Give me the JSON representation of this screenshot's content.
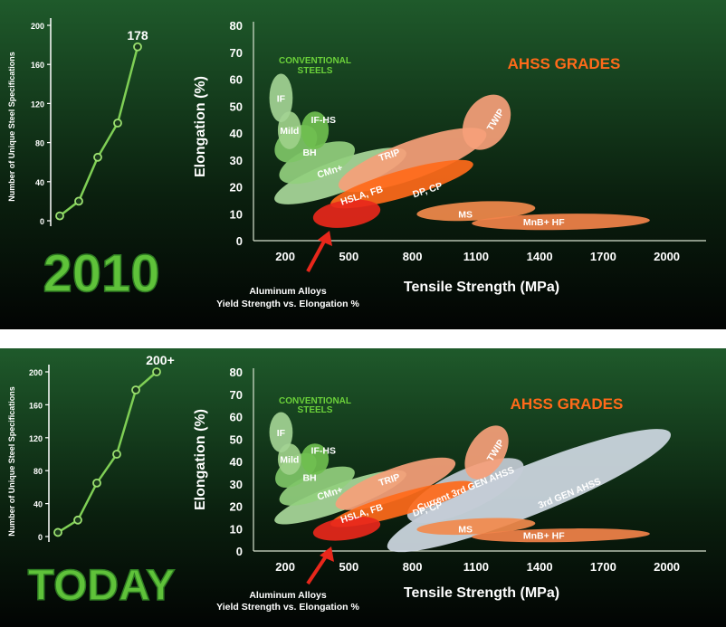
{
  "colors": {
    "bg_top": "#1f5a2b",
    "bg_bottom": "#020403",
    "green_line": "#7fcf55",
    "green_label": "#6bd13a",
    "orange": "#ff6a1a",
    "red": "#e8271b",
    "salmon": "#f6a07a",
    "light_gray": "#cfd9e3"
  },
  "panels": [
    {
      "big_label": "2010",
      "left_chart": {
        "type": "line",
        "ylabel": "Number of Unique Steel Specifications",
        "y_ticks": [
          "0",
          "40",
          "80",
          "120",
          "160",
          "200"
        ],
        "ylim": [
          0,
          200
        ],
        "values": [
          5,
          20,
          65,
          100,
          178
        ],
        "end_label": "178"
      },
      "right_chart": {
        "type": "area",
        "xlabel": "Tensile Strength (MPa)",
        "ylabel": "Elongation (%)",
        "x_ticks": [
          "200",
          "500",
          "800",
          "1100",
          "1400",
          "1700",
          "2000"
        ],
        "y_ticks": [
          "0",
          "10",
          "20",
          "30",
          "40",
          "50",
          "60",
          "70",
          "80"
        ],
        "xlim": [
          50,
          2100
        ],
        "ylim": [
          0,
          80
        ],
        "conventional_label": [
          "CONVENTIONAL",
          "STEELS"
        ],
        "ahss_label": "AHSS GRADES",
        "aluminum_note": [
          "Aluminum Alloys",
          "Yield Strength vs. Elongation %"
        ],
        "regions": [
          {
            "name": "HSLA, FB",
            "cx": 460,
            "cy": 24,
            "rx": 330,
            "ry": 6,
            "angle": -20,
            "fill": "#a9d89a",
            "label_at": [
              560,
              17
            ]
          },
          {
            "name": "CMn+",
            "cx": 350,
            "cy": 29,
            "rx": 190,
            "ry": 6,
            "angle": -22,
            "fill": "#93cf7e",
            "label_at": [
              410,
              26
            ]
          },
          {
            "name": "BH",
            "cx": 250,
            "cy": 36,
            "rx": 110,
            "ry": 6,
            "angle": -35,
            "fill": "#7ec567",
            "label_at": [
              315,
              33
            ]
          },
          {
            "name": "Mild",
            "cx": 220,
            "cy": 41,
            "rx": 55,
            "ry": 7,
            "angle": 0,
            "fill": "#9ed08a",
            "label_at": [
              220,
              41
            ]
          },
          {
            "name": "IF-HS",
            "cx": 340,
            "cy": 41,
            "rx": 65,
            "ry": 7,
            "angle": 0,
            "fill": "#6fbe4f",
            "label_at": [
              380,
              45
            ]
          },
          {
            "name": "IF",
            "cx": 180,
            "cy": 53,
            "rx": 55,
            "ry": 9,
            "angle": 0,
            "fill": "#a3d394",
            "label_at": [
              180,
              53
            ]
          },
          {
            "name": "TRIP",
            "cx": 800,
            "cy": 30,
            "rx": 370,
            "ry": 7,
            "angle": -20,
            "fill": "#f6a07a",
            "label_at": [
              690,
              32
            ]
          },
          {
            "name": "DP, CP",
            "cx": 750,
            "cy": 21,
            "rx": 350,
            "ry": 5,
            "angle": -16,
            "fill": "#ff6a1a",
            "label_at": [
              870,
              19
            ]
          },
          {
            "name": "MS",
            "cx": 1100,
            "cy": 11,
            "rx": 280,
            "ry": 3.5,
            "angle": -3,
            "fill": "#f28a4c",
            "label_at": [
              1050,
              10
            ]
          },
          {
            "name": "MnB+ HF",
            "cx": 1500,
            "cy": 7,
            "rx": 420,
            "ry": 3,
            "angle": -1,
            "fill": "#f2824a",
            "label_at": [
              1420,
              7
            ]
          },
          {
            "name": "TWIP",
            "cx": 1150,
            "cy": 44,
            "rx": 140,
            "ry": 8,
            "angle": -58,
            "fill": "#f6a07a",
            "label_at": [
              1190,
              45
            ]
          },
          {
            "name": "",
            "cx": 490,
            "cy": 10,
            "rx": 160,
            "ry": 5,
            "angle": -8,
            "fill": "#e8271b",
            "label_at": [
              0,
              0
            ]
          }
        ]
      }
    },
    {
      "big_label": "TODAY",
      "left_chart": {
        "type": "line",
        "ylabel": "Number of Unique Steel Specifications",
        "y_ticks": [
          "0",
          "40",
          "80",
          "120",
          "160",
          "200"
        ],
        "ylim": [
          0,
          200
        ],
        "values": [
          5,
          20,
          65,
          100,
          178,
          200
        ],
        "end_label": "200+"
      },
      "right_chart": {
        "type": "area",
        "xlabel": "Tensile Strength (MPa)",
        "ylabel": "Elongation (%)",
        "x_ticks": [
          "200",
          "500",
          "800",
          "1100",
          "1400",
          "1700",
          "2000"
        ],
        "y_ticks": [
          "0",
          "10",
          "20",
          "30",
          "40",
          "50",
          "60",
          "70",
          "80"
        ],
        "xlim": [
          50,
          2100
        ],
        "ylim": [
          0,
          80
        ],
        "conventional_label": [
          "CONVENTIONAL",
          "STEELS"
        ],
        "ahss_label": "AHSS GRADES",
        "aluminum_note": [
          "Aluminum Alloys",
          "Yield Strength vs. Elongation %"
        ],
        "regions": [
          {
            "name": "3rd GEN AHSS",
            "cx": 1350,
            "cy": 27,
            "rx": 720,
            "ry": 11,
            "angle": -22,
            "fill": "#cfd9e3",
            "label_at": [
              1540,
              26
            ]
          },
          {
            "name": "Current 3rd GEN AHSS",
            "cx": 1050,
            "cy": 27,
            "rx": 300,
            "ry": 9,
            "angle": -25,
            "fill": "#c4ccd6",
            "label_at": [
              1050,
              28
            ]
          },
          {
            "name": "HSLA, FB",
            "cx": 460,
            "cy": 24,
            "rx": 330,
            "ry": 6,
            "angle": -20,
            "fill": "#a9d89a",
            "label_at": [
              560,
              17
            ]
          },
          {
            "name": "CMn+",
            "cx": 350,
            "cy": 29,
            "rx": 190,
            "ry": 6,
            "angle": -22,
            "fill": "#93cf7e",
            "label_at": [
              410,
              26
            ]
          },
          {
            "name": "BH",
            "cx": 250,
            "cy": 36,
            "rx": 110,
            "ry": 6,
            "angle": -35,
            "fill": "#7ec567",
            "label_at": [
              315,
              33
            ]
          },
          {
            "name": "Mild",
            "cx": 220,
            "cy": 41,
            "rx": 55,
            "ry": 7,
            "angle": 0,
            "fill": "#9ed08a",
            "label_at": [
              220,
              41
            ]
          },
          {
            "name": "IF-HS",
            "cx": 340,
            "cy": 41,
            "rx": 65,
            "ry": 7,
            "angle": 0,
            "fill": "#6fbe4f",
            "label_at": [
              380,
              45
            ]
          },
          {
            "name": "IF",
            "cx": 180,
            "cy": 53,
            "rx": 55,
            "ry": 9,
            "angle": 0,
            "fill": "#a3d394",
            "label_at": [
              180,
              53
            ]
          },
          {
            "name": "TRIP",
            "cx": 720,
            "cy": 30,
            "rx": 300,
            "ry": 7,
            "angle": -20,
            "fill": "#f6a07a",
            "label_at": [
              690,
              32
            ]
          },
          {
            "name": "DP, CP",
            "cx": 750,
            "cy": 21,
            "rx": 350,
            "ry": 5,
            "angle": -16,
            "fill": "#ff6a1a",
            "label_at": [
              870,
              19
            ]
          },
          {
            "name": "MS",
            "cx": 1100,
            "cy": 11,
            "rx": 280,
            "ry": 3.5,
            "angle": -3,
            "fill": "#f28a4c",
            "label_at": [
              1050,
              10
            ]
          },
          {
            "name": "MnB+ HF",
            "cx": 1500,
            "cy": 7,
            "rx": 420,
            "ry": 3,
            "angle": -1,
            "fill": "#f2824a",
            "label_at": [
              1420,
              7
            ]
          },
          {
            "name": "TWIP",
            "cx": 1150,
            "cy": 44,
            "rx": 140,
            "ry": 8,
            "angle": -58,
            "fill": "#f6a07a",
            "label_at": [
              1190,
              45
            ]
          },
          {
            "name": "",
            "cx": 490,
            "cy": 10,
            "rx": 160,
            "ry": 5,
            "angle": -8,
            "fill": "#e8271b",
            "label_at": [
              0,
              0
            ]
          }
        ]
      }
    }
  ]
}
